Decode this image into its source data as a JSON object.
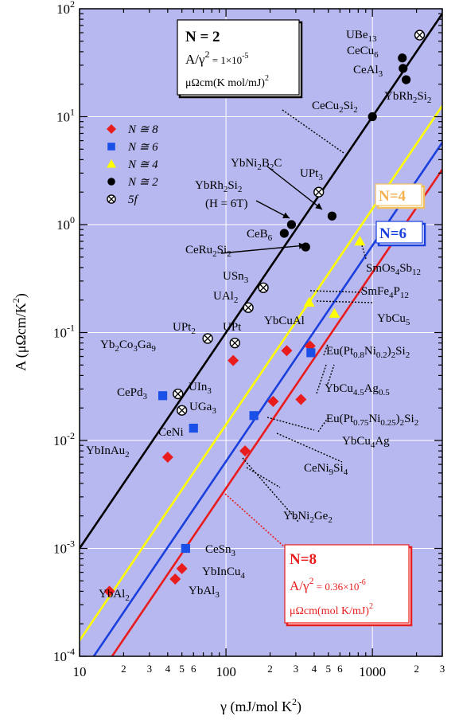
{
  "chart_data": {
    "type": "scatter",
    "x_scale": "log",
    "y_scale": "log",
    "xlim": [
      10,
      3000
    ],
    "ylim": [
      0.0001,
      100
    ],
    "xlabel": "γ  (mJ/mol K²)",
    "ylabel": "A  (μΩcm/K²)",
    "x_ticks": [
      {
        "v": 10,
        "t": "10"
      },
      {
        "v": 100,
        "t": "100"
      },
      {
        "v": 1000,
        "t": "1000"
      }
    ],
    "x_minor_labels": [
      {
        "v": 20,
        "t": "2"
      },
      {
        "v": 30,
        "t": "3"
      },
      {
        "v": 40,
        "t": "4"
      },
      {
        "v": 50,
        "t": "5"
      },
      {
        "v": 60,
        "t": "6"
      },
      {
        "v": 200,
        "t": "2"
      },
      {
        "v": 300,
        "t": "3"
      },
      {
        "v": 400,
        "t": "4"
      },
      {
        "v": 500,
        "t": "5"
      },
      {
        "v": 600,
        "t": "6"
      },
      {
        "v": 2000,
        "t": "2"
      },
      {
        "v": 3000,
        "t": "3"
      }
    ],
    "y_ticks": [
      {
        "v": 0.0001,
        "base": "10",
        "exp": "-4"
      },
      {
        "v": 0.001,
        "base": "10",
        "exp": "-3"
      },
      {
        "v": 0.01,
        "base": "10",
        "exp": "-2"
      },
      {
        "v": 0.1,
        "base": "10",
        "exp": "-1"
      },
      {
        "v": 1,
        "base": "10",
        "exp": "0"
      },
      {
        "v": 10,
        "base": "10",
        "exp": "1"
      },
      {
        "v": 100,
        "base": "10",
        "exp": "2"
      }
    ],
    "grid": true,
    "background": "#b8b8f0",
    "lines": [
      {
        "name": "N=2",
        "coef": 1e-05,
        "color": "#000000"
      },
      {
        "name": "N=4",
        "coef": 1.4e-06,
        "color": "#ffff00"
      },
      {
        "name": "N=6",
        "coef": 6.4e-07,
        "color": "#1a3fdc"
      },
      {
        "name": "N=8",
        "coef": 3.6e-07,
        "color": "#e81c1c"
      }
    ],
    "legend": [
      {
        "marker": "diamond",
        "color": "#e81c1c",
        "label": "N ≅ 8"
      },
      {
        "marker": "square",
        "color": "#1a50e8",
        "label": "N ≅ 6"
      },
      {
        "marker": "triangle",
        "color": "#ffff00",
        "label": "N ≅ 4"
      },
      {
        "marker": "circle",
        "color": "#000000",
        "label": "N ≅ 2"
      },
      {
        "marker": "otimes",
        "color": "#000000",
        "label": "5f"
      }
    ],
    "points": [
      {
        "name": "YbAl2",
        "x": 16,
        "y": 0.0004,
        "marker": "diamond",
        "color": "#e81c1c"
      },
      {
        "name": "YbAl3",
        "x": 45,
        "y": 0.00052,
        "marker": "diamond",
        "color": "#e81c1c"
      },
      {
        "name": "YbInCu4",
        "x": 50,
        "y": 0.00065,
        "marker": "diamond",
        "color": "#e81c1c"
      },
      {
        "name": "YbInAu2",
        "x": 40,
        "y": 0.007,
        "marker": "diamond",
        "color": "#e81c1c"
      },
      {
        "name": "Yb2Co3Ga9",
        "x": 112,
        "y": 0.055,
        "marker": "diamond",
        "color": "#e81c1c"
      },
      {
        "name": "YbCuAl",
        "x": 260,
        "y": 0.068,
        "marker": "diamond",
        "color": "#e81c1c"
      },
      {
        "name": "YbCu4.5Ag0.5",
        "x": 375,
        "y": 0.075,
        "marker": "diamond",
        "color": "#e81c1c"
      },
      {
        "name": "Eu(Pt0.75Ni0.25)2Si2",
        "x": 325,
        "y": 0.024,
        "marker": "diamond",
        "color": "#e81c1c"
      },
      {
        "name": "YbCu4Ag",
        "x": 210,
        "y": 0.023,
        "marker": "diamond",
        "color": "#e81c1c"
      },
      {
        "name": "YbNi2Ge2",
        "x": 135,
        "y": 0.008,
        "marker": "diamond",
        "color": "#e81c1c"
      },
      {
        "name": "CeSn3",
        "x": 53,
        "y": 0.001,
        "marker": "square",
        "color": "#1a50e8"
      },
      {
        "name": "CePd3",
        "x": 37,
        "y": 0.026,
        "marker": "square",
        "color": "#1a50e8"
      },
      {
        "name": "CeNi",
        "x": 60,
        "y": 0.013,
        "marker": "square",
        "color": "#1a50e8"
      },
      {
        "name": "CeNi9Si4",
        "x": 155,
        "y": 0.017,
        "marker": "square",
        "color": "#1a50e8"
      },
      {
        "name": "Eu(Pt0.8Ni0.2)2Si2",
        "x": 380,
        "y": 0.065,
        "marker": "square",
        "color": "#1a50e8"
      },
      {
        "name": "SmFe4P12",
        "x": 370,
        "y": 0.19,
        "marker": "triangle",
        "color": "#ffff00"
      },
      {
        "name": "YbCu5",
        "x": 550,
        "y": 0.15,
        "marker": "triangle",
        "color": "#ffff00"
      },
      {
        "name": "SmOs4Sb12",
        "x": 820,
        "y": 0.7,
        "marker": "triangle",
        "color": "#ffff00"
      },
      {
        "name": "CeB6",
        "x": 250,
        "y": 0.83,
        "marker": "circle",
        "color": "#000000"
      },
      {
        "name": "YbRh2Si2 (H = 6T)",
        "x": 280,
        "y": 1.0,
        "marker": "circle",
        "color": "#000000"
      },
      {
        "name": "CeRu2Si2",
        "x": 350,
        "y": 0.62,
        "marker": "circle",
        "color": "#000000"
      },
      {
        "name": "YbNi2B2C",
        "x": 530,
        "y": 1.2,
        "marker": "circle",
        "color": "#000000"
      },
      {
        "name": "CeCu2Si2",
        "x": 1000,
        "y": 10,
        "marker": "circle",
        "color": "#000000"
      },
      {
        "name": "CeCu6",
        "x": 1600,
        "y": 35,
        "marker": "circle",
        "color": "#000000"
      },
      {
        "name": "CeAl3",
        "x": 1620,
        "y": 28,
        "marker": "circle",
        "color": "#000000"
      },
      {
        "name": "YbRh2Si2",
        "x": 1700,
        "y": 22,
        "marker": "circle",
        "color": "#000000"
      },
      {
        "name": "UBe13",
        "x": 2100,
        "y": 57,
        "marker": "otimes",
        "color": "#000000"
      },
      {
        "name": "UPt3",
        "x": 430,
        "y": 2.0,
        "marker": "otimes",
        "color": "#000000"
      },
      {
        "name": "USn3",
        "x": 180,
        "y": 0.26,
        "marker": "otimes",
        "color": "#000000"
      },
      {
        "name": "UAl2",
        "x": 142,
        "y": 0.17,
        "marker": "otimes",
        "color": "#000000"
      },
      {
        "name": "UPt2",
        "x": 75,
        "y": 0.088,
        "marker": "otimes",
        "color": "#000000"
      },
      {
        "name": "UPt",
        "x": 115,
        "y": 0.08,
        "marker": "otimes",
        "color": "#000000"
      },
      {
        "name": "UIn3",
        "x": 47,
        "y": 0.027,
        "marker": "otimes",
        "color": "#000000"
      },
      {
        "name": "UGa3",
        "x": 50,
        "y": 0.019,
        "marker": "otimes",
        "color": "#000000"
      }
    ],
    "boxes": {
      "n2": {
        "title": "N = 2",
        "formula_a": "A/γ",
        "formula_sup": "2",
        "formula_b": " = 1×10",
        "formula_exp": "-5",
        "units_a": "μΩcm(K mol/mJ)",
        "units_sup": "2"
      },
      "n8": {
        "title": "N=8",
        "formula_a": "A/γ",
        "formula_sup": "2",
        "formula_b": " = 0.36×10",
        "formula_exp": "-6",
        "units_a": "μΩcm(mol K/mJ)",
        "units_sup": "2"
      },
      "n4": {
        "title": "N=4"
      },
      "n6": {
        "title": "N=6"
      }
    }
  }
}
